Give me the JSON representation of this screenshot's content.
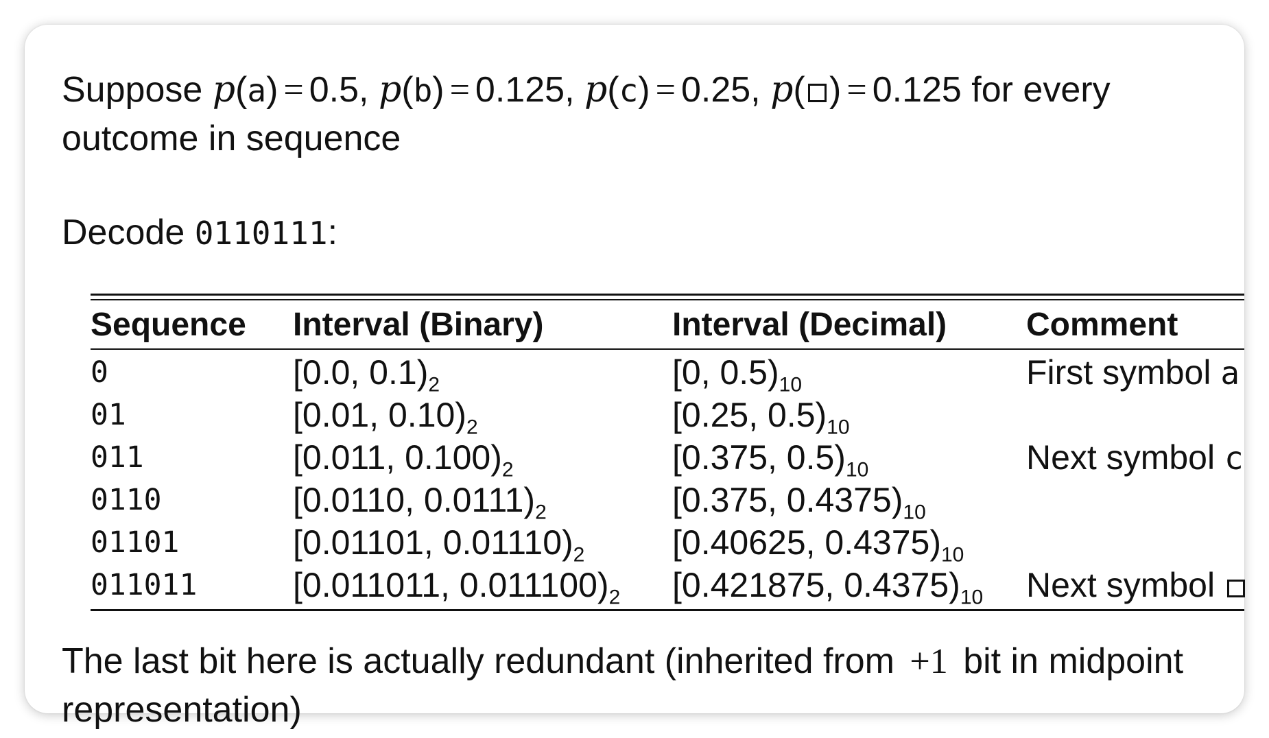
{
  "intro": {
    "lead": "Suppose",
    "items": [
      {
        "fn": "p",
        "sym": "a",
        "value": "0.5"
      },
      {
        "fn": "p",
        "sym": "b",
        "value": "0.125"
      },
      {
        "fn": "p",
        "sym": "c",
        "value": "0.25"
      },
      {
        "fn": "p",
        "sym": "□",
        "value": "0.125"
      }
    ],
    "trail": "for every outcome in sequence"
  },
  "decode": {
    "label": "Decode",
    "code": "0110111",
    "colon": ":"
  },
  "table": {
    "headers": [
      "Sequence",
      "Interval (Binary)",
      "Interval (Decimal)",
      "Comment"
    ],
    "rows": [
      {
        "sequence": "0",
        "binary": "[0.0, 0.1)",
        "binary_base": "2",
        "decimal": "[0, 0.5)",
        "decimal_base": "10",
        "comment": "First symbol",
        "comment_symbol": "a"
      },
      {
        "sequence": "01",
        "binary": "[0.01, 0.10)",
        "binary_base": "2",
        "decimal": "[0.25, 0.5)",
        "decimal_base": "10",
        "comment": "",
        "comment_symbol": ""
      },
      {
        "sequence": "011",
        "binary": "[0.011, 0.100)",
        "binary_base": "2",
        "decimal": "[0.375, 0.5)",
        "decimal_base": "10",
        "comment": "Next symbol",
        "comment_symbol": "c"
      },
      {
        "sequence": "0110",
        "binary": "[0.0110, 0.0111)",
        "binary_base": "2",
        "decimal": "[0.375, 0.4375)",
        "decimal_base": "10",
        "comment": "",
        "comment_symbol": ""
      },
      {
        "sequence": "01101",
        "binary": "[0.01101, 0.01110)",
        "binary_base": "2",
        "decimal": "[0.40625, 0.4375)",
        "decimal_base": "10",
        "comment": "",
        "comment_symbol": ""
      },
      {
        "sequence": "011011",
        "binary": "[0.011011, 0.011100)",
        "binary_base": "2",
        "decimal": "[0.421875, 0.4375)",
        "decimal_base": "10",
        "comment": "Next symbol",
        "comment_symbol": "□"
      }
    ]
  },
  "note": {
    "before": "The last bit here is actually redundant (inherited from",
    "math": "+1",
    "after": "bit in midpoint representation)"
  }
}
